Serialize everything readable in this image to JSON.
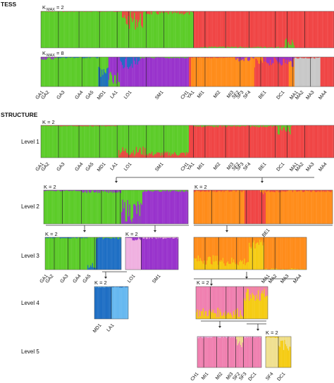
{
  "headers": {
    "tess": "TESS",
    "structure": "STRUCTURE"
  },
  "tess_k2_label": "K",
  "tess_k2_sub": "MAX",
  "tess_k2_val": "= 2",
  "tess_k8_label": "K",
  "tess_k8_sub": "MAX",
  "tess_k8_val": "= 8",
  "k2_label": "K = 2",
  "levels": [
    "Level 1",
    "Level 2",
    "Level 3",
    "Level 4",
    "Level 5"
  ],
  "colors": {
    "green": "#5ccc29",
    "red": "#f04545",
    "purple": "#9933cc",
    "orange": "#ff8c1a",
    "blue": "#1f6fc4",
    "lightblue": "#66b8f0",
    "grey": "#c8c8c8",
    "pink": "#f080b0",
    "lightpink": "#f0b0e0",
    "yellow": "#f5cc14",
    "paleyellow": "#f0e090"
  },
  "full_row_labels": [
    "GA1",
    "GA2",
    "GA3",
    "GA4",
    "GA5",
    "MD1",
    "LA1",
    "LO1",
    "SM1",
    "CH1",
    "YA1",
    "MI1",
    "MI2",
    "MI3",
    "SF2",
    "SF3",
    "SF4",
    "BE1",
    "DC1",
    "MA1",
    "MA2",
    "MA3",
    "MA4"
  ],
  "level3_left_labels": [
    "GA1",
    "GA2",
    "GA3",
    "GA4",
    "GA5"
  ],
  "level3_mid_labels": [
    "LO1",
    "SM1"
  ],
  "level2_right_labels": [
    "BE1"
  ],
  "level3_right_labels": [
    "MA1",
    "MA2",
    "MA3",
    "MA4"
  ],
  "level4_left_labels": [
    "MD1",
    "LA1"
  ],
  "level5_left_labels": [
    "CH1",
    "MI1",
    "MI2",
    "MI3",
    "SF2",
    "SF3",
    "DC1"
  ],
  "level5_right_labels": [
    "SF4",
    "DC1"
  ]
}
